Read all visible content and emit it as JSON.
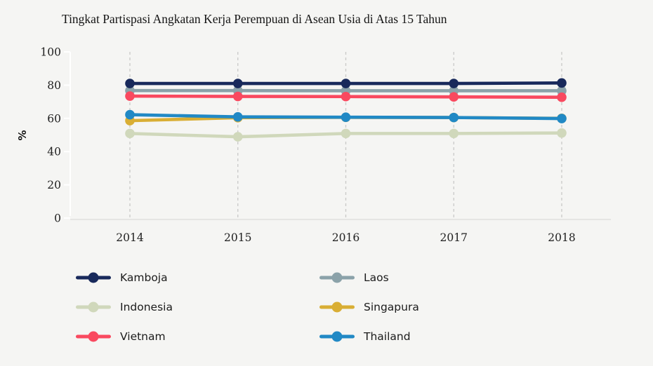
{
  "chart_data": {
    "type": "line",
    "title": "Tingkat Partispasi Angkatan Kerja Perempuan di Asean Usia di Atas 15 Tahun",
    "ylabel": "%",
    "xlabel": "",
    "categories": [
      "2014",
      "2015",
      "2016",
      "2017",
      "2018"
    ],
    "ylim": [
      0,
      100
    ],
    "yticks": [
      0,
      20,
      40,
      60,
      80,
      100
    ],
    "grid": "vertical-dashed-gridlines",
    "legend_position": "bottom-two-columns",
    "legend_order": [
      "Kamboja",
      "Laos",
      "Indonesia",
      "Singapura",
      "Vietnam",
      "Thailand"
    ],
    "series": [
      {
        "name": "Indonesia",
        "color": "#d0d8bb",
        "values": [
          50.9,
          48.9,
          50.9,
          50.9,
          51.2
        ]
      },
      {
        "name": "Singapura",
        "color": "#d9ae34",
        "values": [
          58.6,
          60.4,
          60.6,
          60.5,
          60.0
        ]
      },
      {
        "name": "Thailand",
        "color": "#2189c5",
        "values": [
          62.2,
          60.9,
          60.7,
          60.5,
          59.9
        ]
      },
      {
        "name": "Laos",
        "color": "#8ba2a9",
        "values": [
          76.7,
          76.7,
          76.6,
          76.6,
          76.6
        ]
      },
      {
        "name": "Vietnam",
        "color": "#f9495f",
        "values": [
          73.4,
          73.2,
          73.1,
          72.9,
          72.7
        ]
      },
      {
        "name": "Kamboja",
        "color": "#18295b",
        "values": [
          81.0,
          81.0,
          81.0,
          81.0,
          81.3
        ]
      }
    ]
  },
  "style": {
    "background": "#f5f5f3",
    "gridline_color": "#c9c9c7",
    "axis_baseline_color": "#e0e0de",
    "axis_tick_color": "#ffffff",
    "text_color": "#212121"
  }
}
